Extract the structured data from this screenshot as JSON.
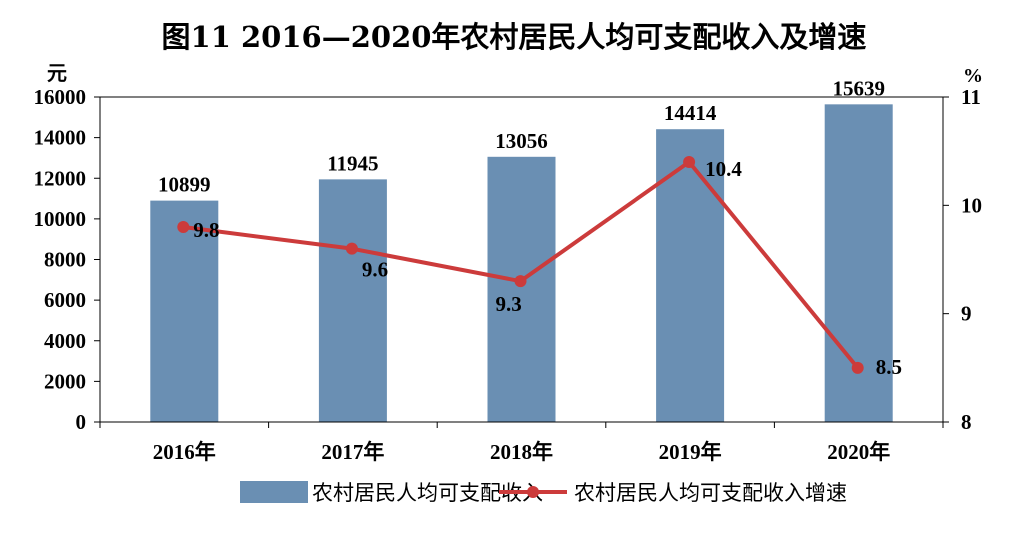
{
  "chart_data": {
    "type": "bar",
    "title": "图11 2016—2020年农村居民人均可支配收入及增速",
    "categories": [
      "2016年",
      "2017年",
      "2018年",
      "2019年",
      "2020年"
    ],
    "series": [
      {
        "name": "农村居民人均可支配收入",
        "type": "bar",
        "axis": "left",
        "values": [
          10899,
          11945,
          13056,
          14414,
          15639
        ],
        "color": "#6a8fb3"
      },
      {
        "name": "农村居民人均可支配收入增速",
        "type": "line",
        "axis": "right",
        "values": [
          9.8,
          9.6,
          9.3,
          10.4,
          8.5
        ],
        "color": "#cc3b3b"
      }
    ],
    "y_left": {
      "unit": "元",
      "min": 0,
      "max": 16000,
      "ticks": [
        0,
        2000,
        4000,
        6000,
        8000,
        10000,
        12000,
        14000,
        16000
      ]
    },
    "y_right": {
      "unit": "%",
      "min": 8,
      "max": 11,
      "ticks": [
        8,
        9,
        10,
        11
      ]
    },
    "grid": false,
    "legend": "bottom"
  }
}
